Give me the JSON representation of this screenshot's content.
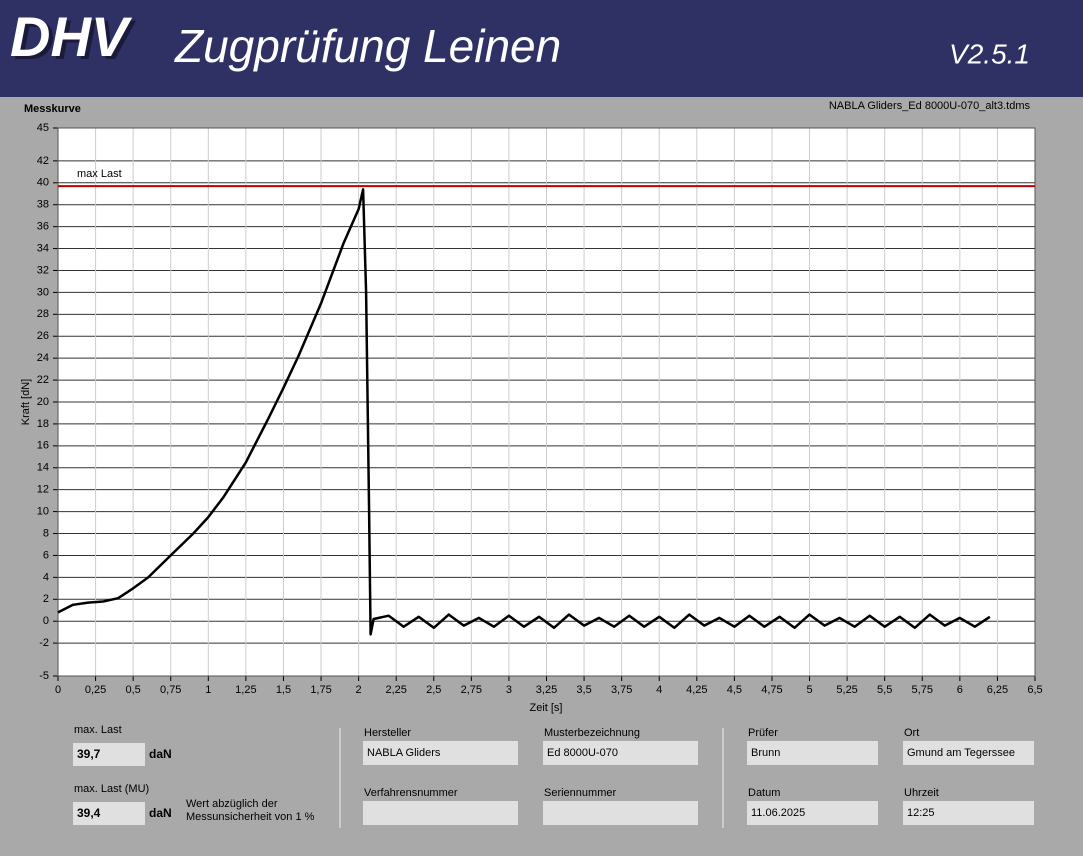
{
  "header": {
    "logo": "DHV",
    "title": "Zugprüfung Leinen",
    "version": "V2.5.1"
  },
  "chart_data": {
    "type": "line",
    "title": "Messkurve",
    "subtitle": "NABLA Gliders_Ed 8000U-070_alt3.tdms",
    "x_label": "Zeit [s]",
    "y_label": "Kraft [dN]",
    "color": "#000000",
    "grid": true,
    "x": [
      0,
      0.1,
      0.2,
      0.3,
      0.4,
      0.5,
      0.6,
      0.75,
      0.9,
      1,
      1.1,
      1.25,
      1.4,
      1.5,
      1.6,
      1.75,
      1.9,
      2,
      2.03,
      2.05,
      2.07,
      2.08,
      2.1,
      2.2,
      2.3,
      2.4,
      2.5,
      2.6,
      2.7,
      2.8,
      2.9,
      3,
      3.1,
      3.2,
      3.3,
      3.4,
      3.5,
      3.6,
      3.7,
      3.8,
      3.9,
      4,
      4.1,
      4.2,
      4.3,
      4.4,
      4.5,
      4.6,
      4.7,
      4.8,
      4.9,
      5,
      5.1,
      5.2,
      5.3,
      5.4,
      5.5,
      5.6,
      5.7,
      5.8,
      5.9,
      6,
      6.1,
      6.2
    ],
    "values": [
      0.8,
      1.5,
      1.7,
      1.8,
      2.1,
      3,
      4,
      6,
      8,
      9.5,
      11.3,
      14.5,
      18.5,
      21.3,
      24.2,
      29,
      34.5,
      37.6,
      39.4,
      30,
      10,
      -1.2,
      0.2,
      0.5,
      -0.5,
      0.4,
      -0.6,
      0.6,
      -0.4,
      0.3,
      -0.5,
      0.5,
      -0.5,
      0.4,
      -0.6,
      0.6,
      -0.4,
      0.3,
      -0.5,
      0.5,
      -0.5,
      0.4,
      -0.6,
      0.6,
      -0.4,
      0.3,
      -0.5,
      0.5,
      -0.5,
      0.4,
      -0.6,
      0.6,
      -0.4,
      0.3,
      -0.5,
      0.5,
      -0.5,
      0.4,
      -0.6,
      0.6,
      -0.4,
      0.3,
      -0.5,
      0.4
    ],
    "xlim": [
      0,
      6.5
    ],
    "ylim": [
      -5,
      45
    ],
    "xticks": [
      0,
      {
        "value": 0.25,
        "label": "0,25"
      },
      {
        "value": 0.5,
        "label": "0,5"
      },
      {
        "value": 0.75,
        "label": "0,75"
      },
      1,
      {
        "value": 1.25,
        "label": "1,25"
      },
      {
        "value": 1.5,
        "label": "1,5"
      },
      {
        "value": 1.75,
        "label": "1,75"
      },
      2,
      {
        "value": 2.25,
        "label": "2,25"
      },
      {
        "value": 2.5,
        "label": "2,5"
      },
      {
        "value": 2.75,
        "label": "2,75"
      },
      3,
      {
        "value": 3.25,
        "label": "3,25"
      },
      {
        "value": 3.5,
        "label": "3,5"
      },
      {
        "value": 3.75,
        "label": "3,75"
      },
      4,
      {
        "value": 4.25,
        "label": "4,25"
      },
      {
        "value": 4.5,
        "label": "4,5"
      },
      {
        "value": 4.75,
        "label": "4,75"
      },
      5,
      {
        "value": 5.25,
        "label": "5,25"
      },
      {
        "value": 5.5,
        "label": "5,5"
      },
      {
        "value": 5.75,
        "label": "5,75"
      },
      6,
      {
        "value": 6.25,
        "label": "6,25"
      },
      {
        "value": 6.5,
        "label": "6,5"
      }
    ],
    "yticks": [
      -5,
      -2,
      0,
      2,
      4,
      6,
      8,
      10,
      12,
      14,
      16,
      18,
      20,
      22,
      24,
      26,
      28,
      30,
      32,
      34,
      36,
      38,
      40,
      42,
      45
    ],
    "reference_line": {
      "label": "max Last",
      "value": 39.7,
      "color": "#c00000"
    }
  },
  "panel": {
    "measurements": [
      {
        "label": "max. Last",
        "value": "39,7",
        "unit": "daN"
      },
      {
        "label": "max. Last (MU)",
        "value": "39,4",
        "unit": "daN",
        "note": [
          "Wert abzüglich der",
          "Messunsicherheit von 1 %"
        ]
      }
    ],
    "fields": [
      {
        "label": "Hersteller",
        "value": "NABLA Gliders"
      },
      {
        "label": "Musterbezeichnung",
        "value": "Ed 8000U-070"
      },
      {
        "label": "Verfahrensnummer"
      },
      {
        "label": "Seriennummer"
      },
      {
        "label": "Prüfer",
        "value": "Brunn"
      },
      {
        "label": "Ort",
        "value": "Gmund am Tegerssee"
      },
      {
        "label": "Datum",
        "value": "11.06.2025"
      },
      {
        "label": "Uhrzeit",
        "value": "12:25"
      }
    ]
  }
}
